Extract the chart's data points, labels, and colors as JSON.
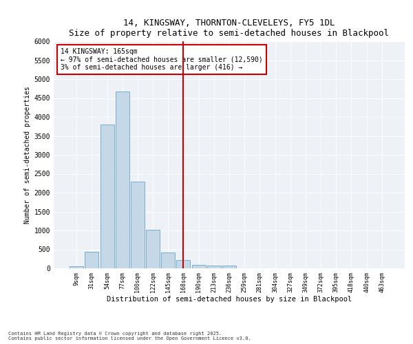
{
  "title1": "14, KINGSWAY, THORNTON-CLEVELEYS, FY5 1DL",
  "title2": "Size of property relative to semi-detached houses in Blackpool",
  "xlabel": "Distribution of semi-detached houses by size in Blackpool",
  "ylabel": "Number of semi-detached properties",
  "categories": [
    "9sqm",
    "31sqm",
    "54sqm",
    "77sqm",
    "100sqm",
    "122sqm",
    "145sqm",
    "168sqm",
    "190sqm",
    "213sqm",
    "236sqm",
    "259sqm",
    "281sqm",
    "304sqm",
    "327sqm",
    "349sqm",
    "372sqm",
    "395sqm",
    "418sqm",
    "440sqm",
    "463sqm"
  ],
  "values": [
    50,
    430,
    3800,
    4680,
    2290,
    1010,
    420,
    220,
    100,
    80,
    75,
    0,
    0,
    0,
    0,
    0,
    0,
    0,
    0,
    0,
    0
  ],
  "bar_color": "#c5d8e8",
  "bar_edge_color": "#7aadcc",
  "vline_x_index": 7,
  "vline_color": "#cc0000",
  "annotation_title": "14 KINGSWAY: 165sqm",
  "annotation_line1": "← 97% of semi-detached houses are smaller (12,590)",
  "annotation_line2": "3% of semi-detached houses are larger (416) →",
  "annotation_box_color": "#cc0000",
  "ylim": [
    0,
    6000
  ],
  "yticks": [
    0,
    500,
    1000,
    1500,
    2000,
    2500,
    3000,
    3500,
    4000,
    4500,
    5000,
    5500,
    6000
  ],
  "footer1": "Contains HM Land Registry data © Crown copyright and database right 2025.",
  "footer2": "Contains public sector information licensed under the Open Government Licence v3.0.",
  "bg_color": "#ffffff",
  "plot_bg_color": "#eef2f7",
  "grid_color": "#ffffff"
}
